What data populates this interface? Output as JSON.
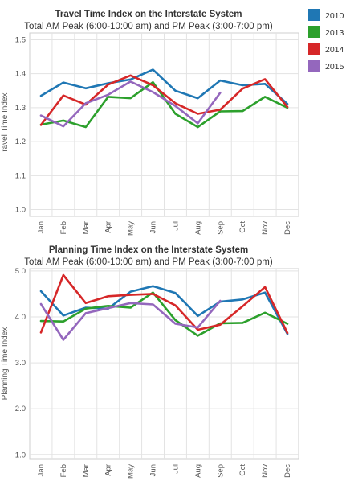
{
  "legend": [
    {
      "name": "2010",
      "color": "#1f77b4"
    },
    {
      "name": "2013",
      "color": "#2ca02c"
    },
    {
      "name": "2014",
      "color": "#d62728"
    },
    {
      "name": "2015",
      "color": "#9467bd"
    }
  ],
  "chart_data": [
    {
      "type": "line",
      "title": "Travel Time Index on the Interstate System",
      "subtitle": "Total AM Peak (6:00-10:00 am) and PM Peak (3:00-7:00 pm)",
      "xlabel": "",
      "ylabel": "Travel Time Index",
      "ylim": [
        0.98,
        1.52
      ],
      "yticks": [
        "1.0",
        "1.1",
        "1.2",
        "1.3",
        "1.4",
        "1.5"
      ],
      "categories": [
        "Jan",
        "Feb",
        "Mar",
        "Apr",
        "May",
        "Jun",
        "Jul",
        "Aug",
        "Sep",
        "Oct",
        "Nov",
        "Dec"
      ],
      "grid": true,
      "series": [
        {
          "name": "2010",
          "color": "#1f77b4",
          "values": [
            1.335,
            1.374,
            1.357,
            1.372,
            1.383,
            1.412,
            1.35,
            1.328,
            1.38,
            1.366,
            1.37,
            1.311
          ]
        },
        {
          "name": "2013",
          "color": "#2ca02c",
          "values": [
            1.25,
            1.262,
            1.243,
            1.332,
            1.328,
            1.375,
            1.282,
            1.243,
            1.289,
            1.29,
            1.332,
            1.3
          ]
        },
        {
          "name": "2014",
          "color": "#d62728",
          "values": [
            1.249,
            1.336,
            1.309,
            1.368,
            1.395,
            1.366,
            1.313,
            1.282,
            1.294,
            1.356,
            1.384,
            1.302
          ]
        },
        {
          "name": "2015",
          "color": "#9467bd",
          "values": [
            1.277,
            1.245,
            1.313,
            1.338,
            1.377,
            1.346,
            1.305,
            1.254,
            1.344,
            null,
            null,
            null
          ]
        }
      ]
    },
    {
      "type": "line",
      "title": "Planning Time Index on the Interstate System",
      "subtitle": "Total AM Peak (6:00-10:00 am) and PM Peak (3:00-7:00 pm)",
      "xlabel": "",
      "ylabel": "Planning Time Index",
      "ylim": [
        0.9,
        5.05
      ],
      "yticks": [
        "1.0",
        "2.0",
        "3.0",
        "4.0",
        "5.0"
      ],
      "categories": [
        "Jan",
        "Feb",
        "Mar",
        "Apr",
        "May",
        "Jun",
        "Jul",
        "Aug",
        "Sep",
        "Oct",
        "Nov",
        "Dec"
      ],
      "grid": true,
      "series": [
        {
          "name": "2010",
          "color": "#1f77b4",
          "values": [
            4.56,
            4.03,
            4.2,
            4.18,
            4.55,
            4.67,
            4.52,
            4.02,
            4.33,
            4.38,
            4.53,
            3.63
          ]
        },
        {
          "name": "2013",
          "color": "#2ca02c",
          "values": [
            3.91,
            3.9,
            4.18,
            4.24,
            4.2,
            4.53,
            3.93,
            3.59,
            3.86,
            3.87,
            4.09,
            3.85
          ]
        },
        {
          "name": "2014",
          "color": "#d62728",
          "values": [
            3.66,
            4.91,
            4.3,
            4.45,
            4.48,
            4.5,
            4.25,
            3.72,
            3.83,
            4.23,
            4.65,
            3.65
          ]
        },
        {
          "name": "2015",
          "color": "#9467bd",
          "values": [
            4.28,
            3.5,
            4.08,
            4.19,
            4.3,
            4.27,
            3.85,
            3.77,
            4.35,
            null,
            null,
            null
          ]
        }
      ]
    }
  ]
}
